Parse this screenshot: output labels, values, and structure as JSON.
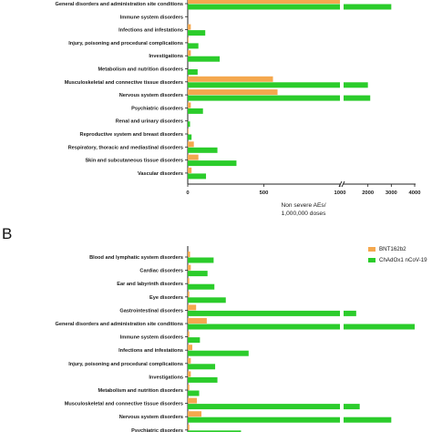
{
  "panel_b_letter": "B",
  "chart_data": [
    {
      "type": "bar",
      "orientation": "horizontal",
      "panel": "A",
      "categories": [
        "General disorders and administration site conditions",
        "Immune system disorders",
        "Infections and infestations",
        "Injury, poisoning and procedural complications",
        "Investigations",
        "Metabolism and nutrition disorders",
        "Musculoskeletal and connective tissue disorders",
        "Nervous system disorders",
        "Psychiatric disorders",
        "Renal and urinary disorders",
        "Reproductive system and breast disorders",
        "Respiratory, thoracic and mediastinal disorders",
        "Skin and subcutaneous tissue disorders",
        "Vascular disorders"
      ],
      "series": [
        {
          "values": [
            1000,
            0,
            20,
            5,
            20,
            0,
            560,
            590,
            20,
            0,
            5,
            40,
            70,
            25
          ]
        },
        {
          "values": [
            3000,
            0,
            115,
            70,
            210,
            65,
            2000,
            2100,
            100,
            15,
            25,
            195,
            320,
            120
          ]
        }
      ],
      "xticks": [
        "0",
        "500",
        "1000",
        "2000",
        "3000",
        "4000"
      ],
      "xlabel_lines": [
        "Non severe AEs/",
        "1,000,000 doses"
      ],
      "axis_break": true,
      "xlim": [
        0,
        4000
      ]
    },
    {
      "type": "bar",
      "orientation": "horizontal",
      "panel": "B",
      "categories": [
        "Blood and lymphatic system disorders",
        "Cardiac disorders",
        "Ear and labyrinth disorders",
        "Eye disorders",
        "Gastrointestinal disorders",
        "General disorders and administration site conditions",
        "Immune system disorders",
        "Infections and infestations",
        "Injury, poisoning and procedural complications",
        "Investigations",
        "Metabolism and nutrition disorders",
        "Musculoskeletal and connective tissue disorders",
        "Nervous system disorders",
        "Psychiatric disorders"
      ],
      "series": [
        {
          "name": "BNT162b2",
          "values": [
            15,
            20,
            10,
            10,
            55,
            125,
            10,
            30,
            20,
            20,
            10,
            60,
            90,
            10
          ]
        },
        {
          "name": "ChAdOx1 nCoV-19",
          "values": [
            170,
            130,
            175,
            250,
            1500,
            4000,
            80,
            400,
            180,
            195,
            75,
            1650,
            3000,
            350
          ]
        }
      ],
      "axis_break": true,
      "legend_position": "top-right"
    }
  ],
  "colors": {
    "series_1": "#f5a84e",
    "series_2": "#2bcc2b",
    "text": "#1a1a1a",
    "axis": "#222222"
  }
}
